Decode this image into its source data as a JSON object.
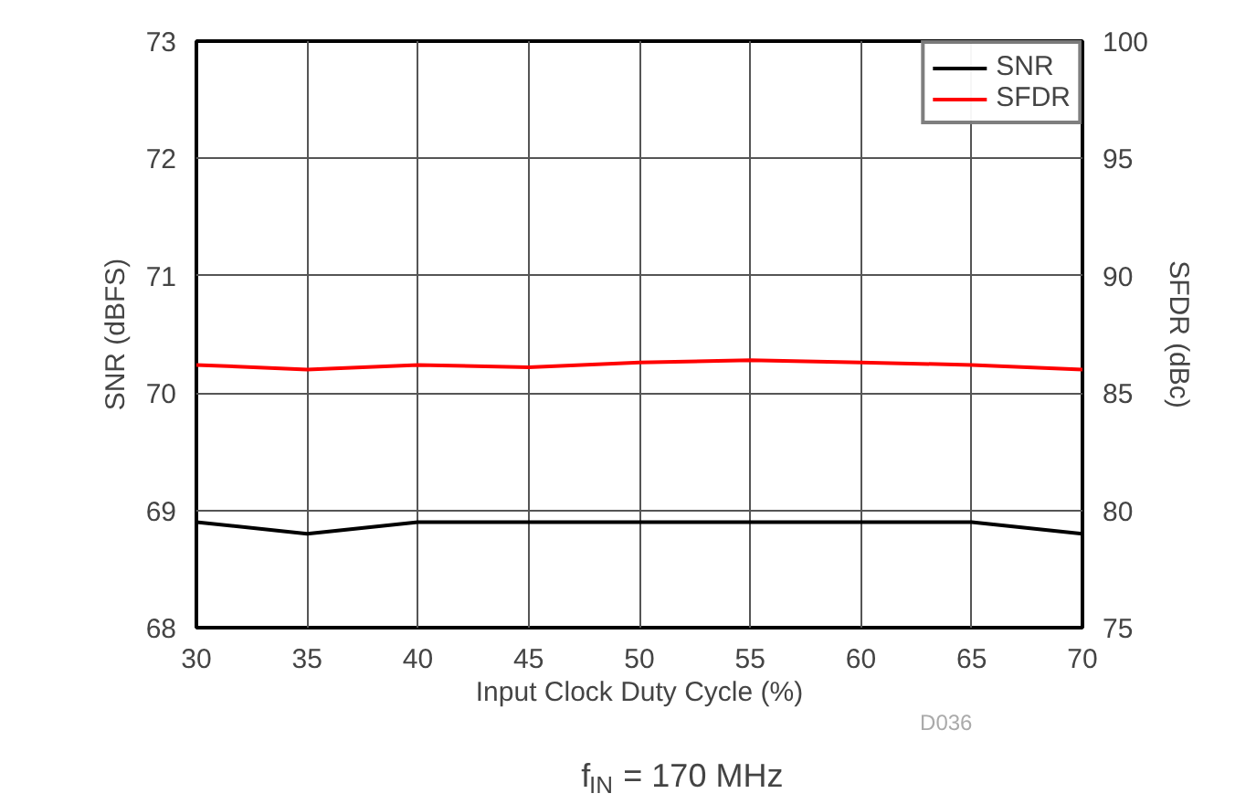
{
  "chart_data": {
    "type": "line",
    "xlabel": "Input Clock Duty Cycle (%)",
    "ylabel": "SNR (dBFS)",
    "y2label": "SFDR (dBc)",
    "x": [
      30,
      35,
      40,
      45,
      50,
      55,
      60,
      65,
      70
    ],
    "series": [
      {
        "name": "SNR",
        "color": "#000000",
        "values": [
          68.9,
          68.8,
          68.9,
          68.9,
          68.9,
          68.9,
          68.9,
          68.9,
          68.8
        ]
      },
      {
        "name": "SFDR",
        "color": "#ff0000",
        "axis": "y2",
        "values": [
          86.2,
          86.0,
          86.2,
          86.1,
          86.3,
          86.4,
          86.3,
          86.2,
          86.0
        ]
      }
    ],
    "xlim": [
      30,
      70
    ],
    "xticks": [
      30,
      35,
      40,
      45,
      50,
      55,
      60,
      65,
      70
    ],
    "ylim": [
      68,
      73
    ],
    "yticks": [
      68,
      69,
      70,
      71,
      72,
      73
    ],
    "y2lim": [
      75,
      100
    ],
    "y2ticks": [
      75,
      80,
      85,
      90,
      95,
      100
    ],
    "grid": true,
    "legend": "top right",
    "marker": "none",
    "line_style": "solid",
    "annotations": [
      "D036",
      "f$_{IN}$ = 170 MHz"
    ]
  }
}
